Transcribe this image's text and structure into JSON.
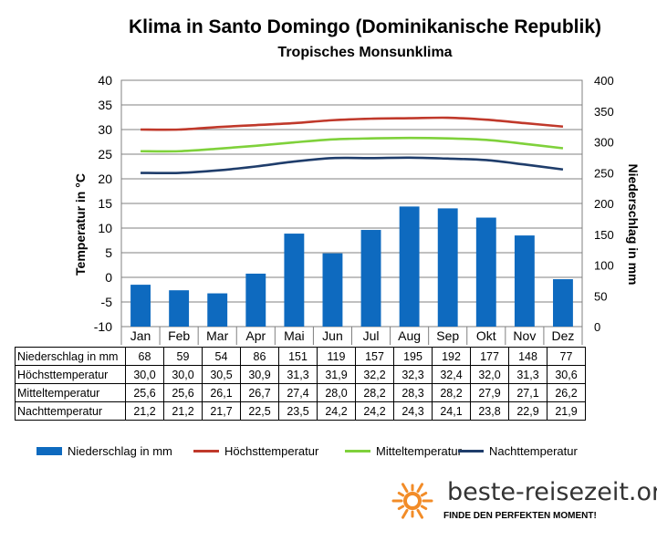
{
  "title": "Klima in Santo Domingo (Dominikanische Republik)",
  "subtitle": "Tropisches Monsunklima",
  "chart_data": {
    "type": "bar",
    "categories": [
      "Jan",
      "Feb",
      "Mar",
      "Apr",
      "Mai",
      "Jun",
      "Jul",
      "Aug",
      "Sep",
      "Okt",
      "Nov",
      "Dez"
    ],
    "ylabel_left": "Temperatur in °C",
    "ylabel_right": "Niederschlag in mm",
    "ylim_left": [
      -10,
      40
    ],
    "ylim_right": [
      0,
      400
    ],
    "yticks_left": [
      "40",
      "35",
      "30",
      "25",
      "20",
      "15",
      "10",
      "5",
      "0",
      "-5",
      "-10"
    ],
    "yticks_right": [
      "400",
      "350",
      "300",
      "250",
      "200",
      "150",
      "100",
      "50",
      "0"
    ],
    "grid": true,
    "legend_position": "bottom",
    "series": [
      {
        "name": "Niederschlag in mm",
        "type": "bar",
        "axis": "right",
        "color": "#0e6abf",
        "values": [
          68,
          59,
          54,
          86,
          151,
          119,
          157,
          195,
          192,
          177,
          148,
          77
        ]
      },
      {
        "name": "Höchsttemperatur",
        "type": "line",
        "axis": "left",
        "color": "#c0392b",
        "values": [
          30.0,
          30.0,
          30.5,
          30.9,
          31.3,
          31.9,
          32.2,
          32.3,
          32.4,
          32.0,
          31.3,
          30.6
        ]
      },
      {
        "name": "Mitteltemperatur",
        "type": "line",
        "axis": "left",
        "color": "#7fd13b",
        "values": [
          25.6,
          25.6,
          26.1,
          26.7,
          27.4,
          28.0,
          28.2,
          28.3,
          28.2,
          27.9,
          27.1,
          26.2
        ]
      },
      {
        "name": "Nachttemperatur",
        "type": "line",
        "axis": "left",
        "color": "#1f3d6b",
        "values": [
          21.2,
          21.2,
          21.7,
          22.5,
          23.5,
          24.2,
          24.2,
          24.3,
          24.1,
          23.8,
          22.9,
          21.9
        ]
      }
    ]
  },
  "table": {
    "rows": [
      {
        "label": "Niederschlag in mm",
        "values": [
          "68",
          "59",
          "54",
          "86",
          "151",
          "119",
          "157",
          "195",
          "192",
          "177",
          "148",
          "77"
        ]
      },
      {
        "label": "Höchsttemperatur",
        "values": [
          "30,0",
          "30,0",
          "30,5",
          "30,9",
          "31,3",
          "31,9",
          "32,2",
          "32,3",
          "32,4",
          "32,0",
          "31,3",
          "30,6"
        ]
      },
      {
        "label": "Mitteltemperatur",
        "values": [
          "25,6",
          "25,6",
          "26,1",
          "26,7",
          "27,4",
          "28,0",
          "28,2",
          "28,3",
          "28,2",
          "27,9",
          "27,1",
          "26,2"
        ]
      },
      {
        "label": "Nachttemperatur",
        "values": [
          "21,2",
          "21,2",
          "21,7",
          "22,5",
          "23,5",
          "24,2",
          "24,2",
          "24,3",
          "24,1",
          "23,8",
          "22,9",
          "21,9"
        ]
      }
    ]
  },
  "legend": {
    "items": [
      {
        "label": "Niederschlag in mm",
        "kind": "bar",
        "color": "#0e6abf"
      },
      {
        "label": "Höchsttemperatur",
        "kind": "line",
        "color": "#c0392b"
      },
      {
        "label": "Mitteltemperatur",
        "kind": "line",
        "color": "#7fd13b"
      },
      {
        "label": "Nachttemperatur",
        "kind": "line",
        "color": "#1f3d6b"
      }
    ]
  },
  "brand": {
    "name": "beste-reisezeit.org",
    "slogan": "FINDE DEN PERFEKTEN MOMENT!",
    "logo_icon": "sun-icon",
    "logo_color": "#f28c28"
  }
}
